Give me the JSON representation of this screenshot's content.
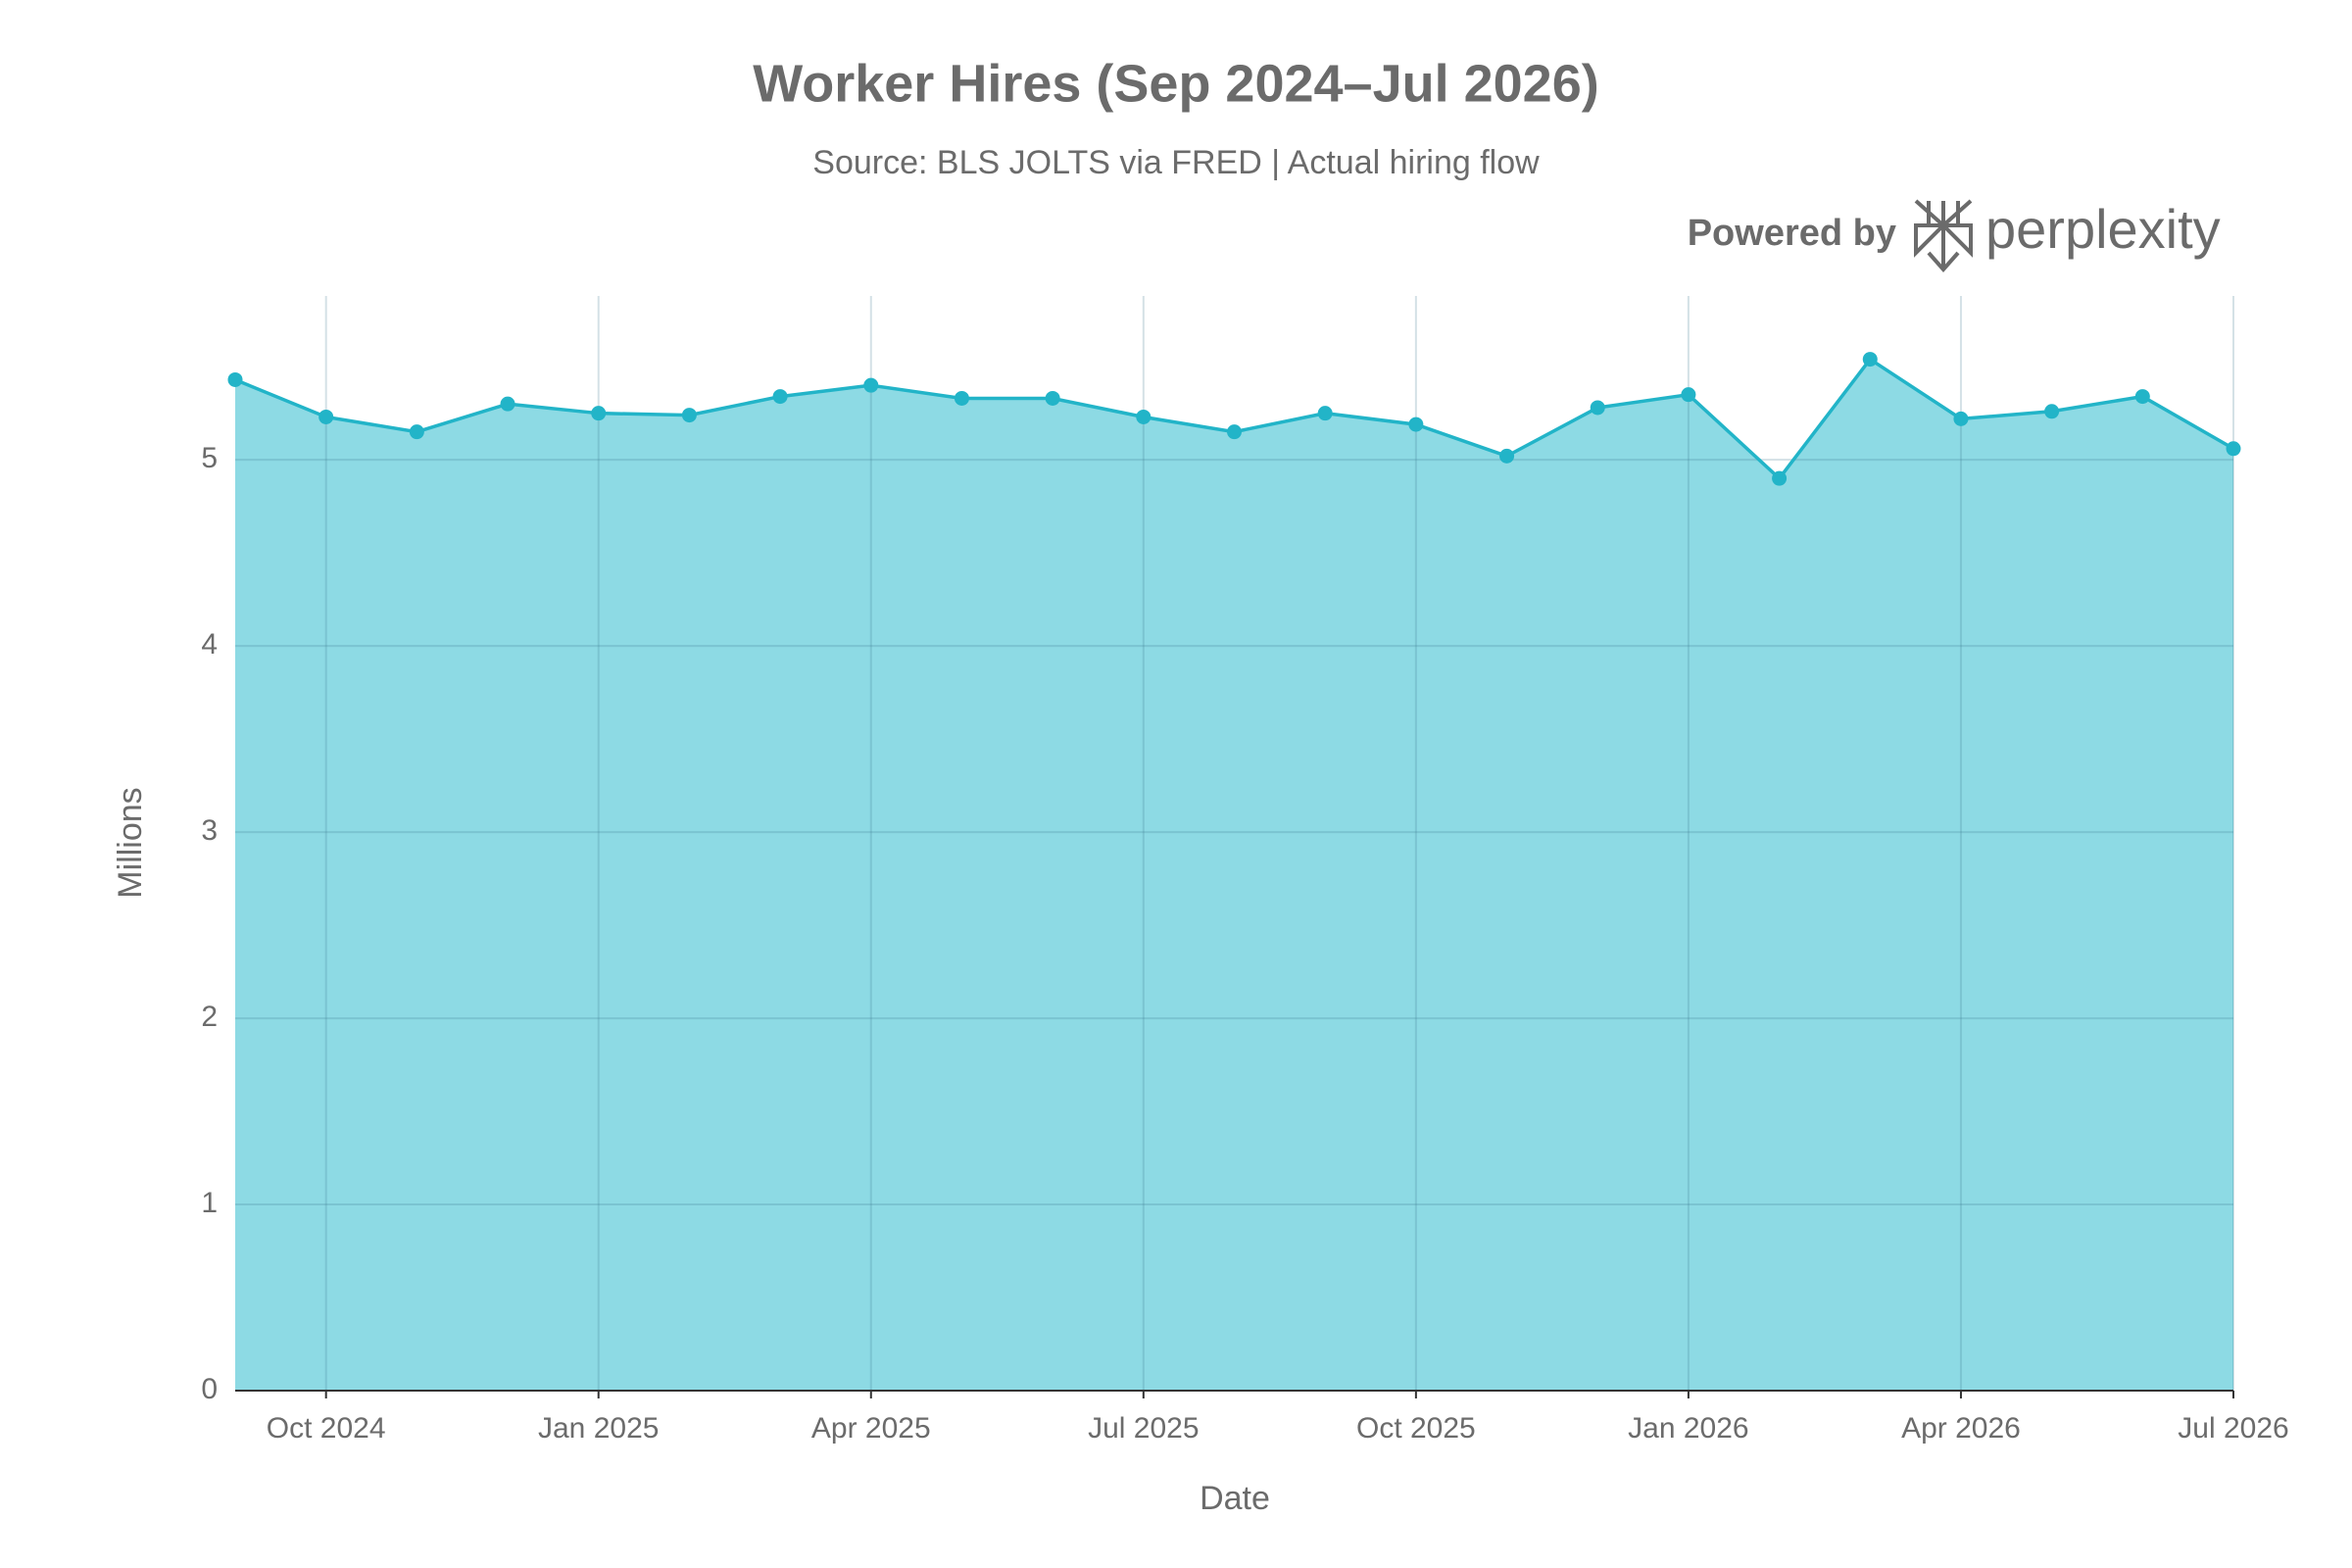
{
  "chart_data": {
    "type": "area",
    "title": "Worker Hires (Sep 2024–Jul 2026)",
    "subtitle": "Source: BLS JOLTS via FRED | Actual hiring flow",
    "branding": {
      "prefix": "Powered by",
      "name": "perplexity"
    },
    "x_label": "Date",
    "y_label": "Millions",
    "x": [
      "2024-09",
      "2024-10",
      "2024-11",
      "2024-12",
      "2025-01",
      "2025-02",
      "2025-03",
      "2025-04",
      "2025-05",
      "2025-06",
      "2025-07",
      "2025-08",
      "2025-09",
      "2025-10",
      "2025-11",
      "2025-12",
      "2026-01",
      "2026-02",
      "2026-03",
      "2026-04",
      "2026-05",
      "2026-06",
      "2026-07"
    ],
    "series": [
      {
        "name": "Hires",
        "color": "#22b4c8",
        "fill": "#8ddae4",
        "values": [
          5.43,
          5.23,
          5.15,
          5.3,
          5.25,
          5.24,
          5.34,
          5.4,
          5.33,
          5.33,
          5.23,
          5.15,
          5.25,
          5.19,
          5.02,
          5.28,
          5.35,
          4.9,
          5.54,
          5.22,
          5.26,
          5.34,
          5.06
        ]
      }
    ],
    "xlim": [
      "2024-09",
      "2026-07"
    ],
    "xticks": [
      {
        "value": "2024-10",
        "label": "Oct 2024"
      },
      {
        "value": "2025-01",
        "label": "Jan 2025"
      },
      {
        "value": "2025-04",
        "label": "Apr 2025"
      },
      {
        "value": "2025-07",
        "label": "Jul 2025"
      },
      {
        "value": "2025-10",
        "label": "Oct 2025"
      },
      {
        "value": "2026-01",
        "label": "Jan 2026"
      },
      {
        "value": "2026-04",
        "label": "Apr 2026"
      },
      {
        "value": "2026-07",
        "label": "Jul 2026"
      }
    ],
    "ylim": [
      0,
      5.88
    ],
    "yticks": [
      0,
      1,
      2,
      3,
      4,
      5
    ],
    "grid": true
  }
}
